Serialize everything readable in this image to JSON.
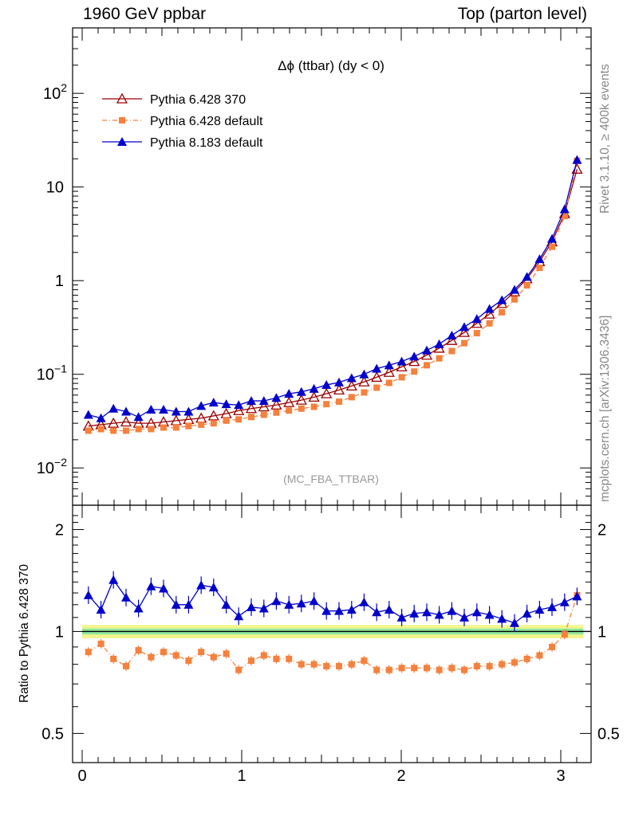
{
  "header": {
    "left": "1960 GeV ppbar",
    "right": "Top (parton level)"
  },
  "side_labels": {
    "rivet": "Rivet 3.1.10, ≥ 400k events",
    "mcplots": "mcplots.cern.ch [arXiv:1306.3436]"
  },
  "chart_data": [
    {
      "type": "line",
      "title": "Δϕ (ttbar) (dy < 0)",
      "watermark": "(MC_FBA_TTBAR)",
      "xlim": [
        -0.06,
        3.19
      ],
      "ylim": [
        0.004,
        500
      ],
      "yscale": "log",
      "ytick_labels": [
        "10^-2",
        "10^-1",
        "1",
        "10",
        "10^2"
      ],
      "legend": {
        "placement": "top-left",
        "entries": [
          "Pythia 6.428 370",
          "Pythia 6.428 default",
          "Pythia 8.183 default"
        ]
      },
      "x": [
        0.039,
        0.118,
        0.196,
        0.275,
        0.353,
        0.432,
        0.51,
        0.589,
        0.667,
        0.746,
        0.824,
        0.903,
        0.981,
        1.06,
        1.139,
        1.217,
        1.296,
        1.374,
        1.453,
        1.531,
        1.61,
        1.689,
        1.767,
        1.846,
        1.924,
        2.003,
        2.081,
        2.16,
        2.238,
        2.317,
        2.395,
        2.474,
        2.553,
        2.631,
        2.71,
        2.788,
        2.867,
        2.945,
        3.024,
        3.102
      ],
      "series": [
        {
          "name": "Pythia 6.428 370",
          "color": "#990000",
          "marker": "open-triangle",
          "values": [
            0.028,
            0.029,
            0.03,
            0.031,
            0.03,
            0.03,
            0.031,
            0.032,
            0.033,
            0.034,
            0.036,
            0.038,
            0.041,
            0.043,
            0.045,
            0.047,
            0.05,
            0.053,
            0.057,
            0.062,
            0.068,
            0.075,
            0.083,
            0.093,
            0.105,
            0.12,
            0.137,
            0.16,
            0.19,
            0.23,
            0.28,
            0.35,
            0.44,
            0.57,
            0.76,
            1.05,
            1.6,
            2.6,
            5.2,
            15.5
          ]
        },
        {
          "name": "Pythia 6.428 default",
          "color": "#f5813d",
          "marker": "filled-square",
          "values": [
            0.025,
            0.026,
            0.025,
            0.025,
            0.026,
            0.026,
            0.027,
            0.027,
            0.028,
            0.029,
            0.03,
            0.032,
            0.033,
            0.035,
            0.037,
            0.039,
            0.041,
            0.043,
            0.045,
            0.048,
            0.051,
            0.057,
            0.064,
            0.072,
            0.081,
            0.093,
            0.107,
            0.125,
            0.148,
            0.177,
            0.215,
            0.275,
            0.35,
            0.46,
            0.63,
            0.89,
            1.37,
            2.3,
            4.9,
            19.0
          ]
        },
        {
          "name": "Pythia 8.183 default",
          "color": "#0000cc",
          "marker": "filled-triangle",
          "values": [
            0.037,
            0.034,
            0.043,
            0.04,
            0.035,
            0.042,
            0.042,
            0.04,
            0.04,
            0.046,
            0.05,
            0.048,
            0.047,
            0.052,
            0.052,
            0.056,
            0.062,
            0.065,
            0.07,
            0.077,
            0.082,
            0.091,
            0.1,
            0.115,
            0.125,
            0.137,
            0.155,
            0.18,
            0.21,
            0.26,
            0.32,
            0.39,
            0.5,
            0.62,
            0.8,
            1.1,
            1.7,
            2.8,
            5.8,
            19.5
          ]
        }
      ]
    },
    {
      "type": "line",
      "ylabel": "Ratio to Pythia 6.428 370",
      "xlim": [
        -0.06,
        3.19
      ],
      "ylim": [
        0.41,
        2.36
      ],
      "yscale": "log",
      "xtick_labels": [
        "0",
        "1",
        "2",
        "3"
      ],
      "ytick_labels": [
        "0.5",
        "1",
        "2"
      ],
      "reference_line": 1,
      "band": {
        "yellow": 0.045,
        "green": 0.02
      },
      "series": [
        {
          "name": "Pythia 6.428 default",
          "color": "#f5813d",
          "values": [
            0.87,
            0.92,
            0.83,
            0.79,
            0.88,
            0.84,
            0.87,
            0.85,
            0.82,
            0.87,
            0.84,
            0.86,
            0.77,
            0.82,
            0.85,
            0.83,
            0.83,
            0.8,
            0.8,
            0.79,
            0.79,
            0.8,
            0.82,
            0.77,
            0.77,
            0.78,
            0.78,
            0.78,
            0.77,
            0.78,
            0.77,
            0.79,
            0.79,
            0.8,
            0.81,
            0.83,
            0.85,
            0.9,
            0.98,
            1.28
          ]
        },
        {
          "name": "Pythia 8.183 default",
          "color": "#0000cc",
          "values": [
            1.28,
            1.16,
            1.42,
            1.26,
            1.17,
            1.36,
            1.34,
            1.2,
            1.2,
            1.37,
            1.35,
            1.2,
            1.11,
            1.18,
            1.17,
            1.23,
            1.2,
            1.21,
            1.23,
            1.15,
            1.15,
            1.16,
            1.22,
            1.14,
            1.16,
            1.1,
            1.13,
            1.14,
            1.12,
            1.15,
            1.1,
            1.14,
            1.12,
            1.09,
            1.06,
            1.13,
            1.16,
            1.18,
            1.22,
            1.27
          ]
        }
      ]
    }
  ]
}
